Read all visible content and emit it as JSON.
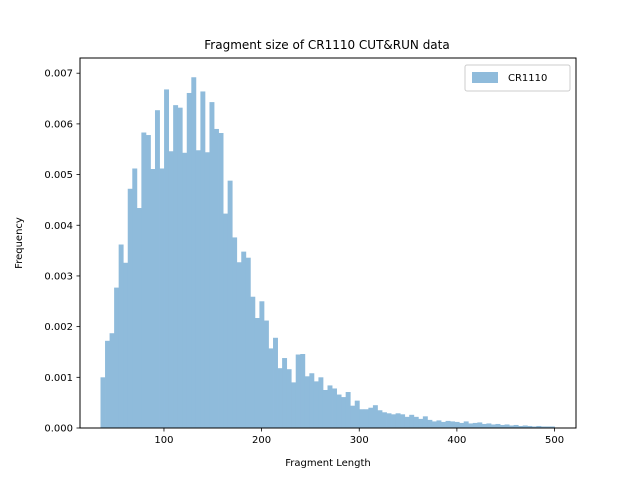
{
  "chart_data": {
    "type": "bar",
    "title": "Fragment size of CR1110 CUT&RUN data",
    "xlabel": "Fragment Length",
    "ylabel": "Frequency",
    "xlim": [
      14,
      522
    ],
    "ylim": [
      0,
      0.0073
    ],
    "xticks": [
      100,
      200,
      300,
      400,
      500
    ],
    "yticks": [
      0.0,
      0.001,
      0.002,
      0.003,
      0.004,
      0.005,
      0.006,
      0.007
    ],
    "ytick_labels": [
      "0.000",
      "0.001",
      "0.002",
      "0.003",
      "0.004",
      "0.005",
      "0.006",
      "0.007"
    ],
    "legend_position": "top-right",
    "grid": false,
    "bin_start": 35,
    "bin_width": 4.65,
    "series": [
      {
        "name": "CR1110",
        "color": "#8fbbdb",
        "values": [
          0.001,
          0.00172,
          0.00187,
          0.00277,
          0.00362,
          0.00326,
          0.00472,
          0.00512,
          0.00434,
          0.00583,
          0.00578,
          0.00511,
          0.00627,
          0.00512,
          0.00668,
          0.00546,
          0.00637,
          0.00632,
          0.00543,
          0.00661,
          0.00692,
          0.00548,
          0.00664,
          0.00544,
          0.00643,
          0.0059,
          0.00582,
          0.00423,
          0.00488,
          0.00376,
          0.00327,
          0.00348,
          0.00336,
          0.00259,
          0.00217,
          0.0025,
          0.00212,
          0.00157,
          0.00178,
          0.00118,
          0.00138,
          0.00116,
          0.0009,
          0.00145,
          0.00146,
          0.00102,
          0.00108,
          0.00092,
          0.001,
          0.00075,
          0.00084,
          0.00078,
          0.00066,
          0.00061,
          0.00071,
          0.00044,
          0.00054,
          0.00037,
          0.00037,
          0.0004,
          0.00045,
          0.00035,
          0.00031,
          0.00029,
          0.00027,
          0.00029,
          0.00027,
          0.00022,
          0.00026,
          0.00022,
          0.00018,
          0.00023,
          0.00016,
          0.00013,
          0.00015,
          0.00012,
          0.00014,
          0.00013,
          0.00012,
          0.0001,
          0.00013,
          9e-05,
          0.0001,
          0.00011,
          8e-05,
          9e-05,
          7e-05,
          8e-05,
          6e-05,
          7e-05,
          5e-05,
          6e-05,
          4e-05,
          5e-05,
          4e-05,
          3e-05,
          4e-05,
          3e-05,
          3e-05,
          3e-05
        ]
      }
    ]
  }
}
